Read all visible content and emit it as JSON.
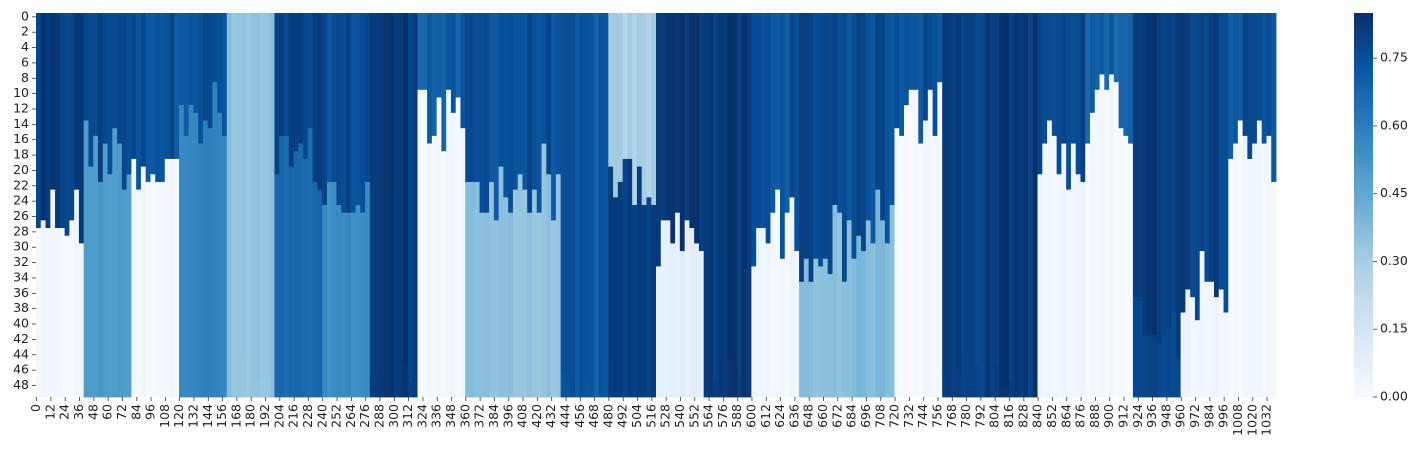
{
  "chart_data": {
    "type": "heatmap",
    "title": "",
    "xlabel": "",
    "ylabel": "",
    "colormap": "Blues",
    "n_cols": 1040,
    "n_rows": 50,
    "x_tick_step": 12,
    "y_tick_step": 2,
    "x_tick_labels": [
      "0",
      "12",
      "24",
      "36",
      "48",
      "60",
      "72",
      "84",
      "96",
      "108",
      "120",
      "132",
      "144",
      "156",
      "168",
      "180",
      "192",
      "204",
      "216",
      "228",
      "240",
      "252",
      "264",
      "276",
      "288",
      "300",
      "312",
      "324",
      "336",
      "348",
      "360",
      "372",
      "384",
      "396",
      "408",
      "420",
      "432",
      "444",
      "456",
      "468",
      "480",
      "492",
      "504",
      "516",
      "528",
      "540",
      "552",
      "564",
      "576",
      "588",
      "600",
      "612",
      "624",
      "636",
      "648",
      "660",
      "672",
      "684",
      "696",
      "708",
      "720",
      "732",
      "744",
      "756",
      "768",
      "780",
      "792",
      "804",
      "816",
      "828",
      "840",
      "852",
      "864",
      "876",
      "888",
      "900",
      "912",
      "924",
      "936",
      "948",
      "960",
      "972",
      "984",
      "996",
      "1008",
      "1020",
      "1032"
    ],
    "y_tick_labels": [
      "0",
      "2",
      "4",
      "6",
      "8",
      "10",
      "12",
      "14",
      "16",
      "18",
      "20",
      "22",
      "24",
      "26",
      "28",
      "30",
      "32",
      "34",
      "36",
      "38",
      "40",
      "42",
      "44",
      "46",
      "48"
    ],
    "colorbar": {
      "vmin": 0.0,
      "vmax": 0.85,
      "ticks": [
        0.0,
        0.15,
        0.3,
        0.45,
        0.6,
        0.75
      ],
      "tick_labels": [
        "0.00",
        "0.15",
        "0.30",
        "0.45",
        "0.60",
        "0.75"
      ]
    },
    "column_groups": [
      {
        "cols": [
          0,
          40
        ],
        "top_value": 0.8,
        "bottom_value": 0.02,
        "transition_row": 26
      },
      {
        "cols": [
          40,
          80
        ],
        "top_value": 0.78,
        "bottom_value": 0.5,
        "transition_row": 18
      },
      {
        "cols": [
          80,
          120
        ],
        "top_value": 0.75,
        "bottom_value": 0.02,
        "transition_row": 20
      },
      {
        "cols": [
          120,
          160
        ],
        "top_value": 0.75,
        "bottom_value": 0.58,
        "transition_row": 14
      },
      {
        "cols": [
          160,
          200
        ],
        "top_value": 0.33,
        "bottom_value": 0.33,
        "transition_row": 50
      },
      {
        "cols": [
          200,
          240
        ],
        "top_value": 0.78,
        "bottom_value": 0.66,
        "transition_row": 20
      },
      {
        "cols": [
          240,
          280
        ],
        "top_value": 0.76,
        "bottom_value": 0.55,
        "transition_row": 24
      },
      {
        "cols": [
          280,
          320
        ],
        "top_value": 0.82,
        "bottom_value": 0.82,
        "transition_row": 50
      },
      {
        "cols": [
          320,
          360
        ],
        "top_value": 0.7,
        "bottom_value": 0.02,
        "transition_row": 14
      },
      {
        "cols": [
          360,
          400
        ],
        "top_value": 0.75,
        "bottom_value": 0.36,
        "transition_row": 24
      },
      {
        "cols": [
          400,
          440
        ],
        "top_value": 0.75,
        "bottom_value": 0.34,
        "transition_row": 22
      },
      {
        "cols": [
          440,
          480
        ],
        "top_value": 0.72,
        "bottom_value": 0.72,
        "transition_row": 50
      },
      {
        "cols": [
          480,
          520
        ],
        "top_value": 0.28,
        "bottom_value": 0.8,
        "transition_row": 22
      },
      {
        "cols": [
          520,
          560
        ],
        "top_value": 0.84,
        "bottom_value": 0.08,
        "transition_row": 30
      },
      {
        "cols": [
          560,
          600
        ],
        "top_value": 0.82,
        "bottom_value": 0.82,
        "transition_row": 50
      },
      {
        "cols": [
          600,
          640
        ],
        "top_value": 0.74,
        "bottom_value": 0.03,
        "transition_row": 28
      },
      {
        "cols": [
          640,
          680
        ],
        "top_value": 0.78,
        "bottom_value": 0.36,
        "transition_row": 30
      },
      {
        "cols": [
          680,
          720
        ],
        "top_value": 0.76,
        "bottom_value": 0.38,
        "transition_row": 28
      },
      {
        "cols": [
          720,
          760
        ],
        "top_value": 0.75,
        "bottom_value": 0.02,
        "transition_row": 14
      },
      {
        "cols": [
          760,
          800
        ],
        "top_value": 0.8,
        "bottom_value": 0.8,
        "transition_row": 50
      },
      {
        "cols": [
          800,
          840
        ],
        "top_value": 0.82,
        "bottom_value": 0.82,
        "transition_row": 50
      },
      {
        "cols": [
          840,
          880
        ],
        "top_value": 0.76,
        "bottom_value": 0.03,
        "transition_row": 18
      },
      {
        "cols": [
          880,
          920
        ],
        "top_value": 0.7,
        "bottom_value": 0.02,
        "transition_row": 12
      },
      {
        "cols": [
          920,
          960
        ],
        "top_value": 0.82,
        "bottom_value": 0.78,
        "transition_row": 40
      },
      {
        "cols": [
          960,
          1000
        ],
        "top_value": 0.8,
        "bottom_value": 0.04,
        "transition_row": 36
      },
      {
        "cols": [
          1000,
          1040
        ],
        "top_value": 0.74,
        "bottom_value": 0.02,
        "transition_row": 18
      }
    ]
  }
}
